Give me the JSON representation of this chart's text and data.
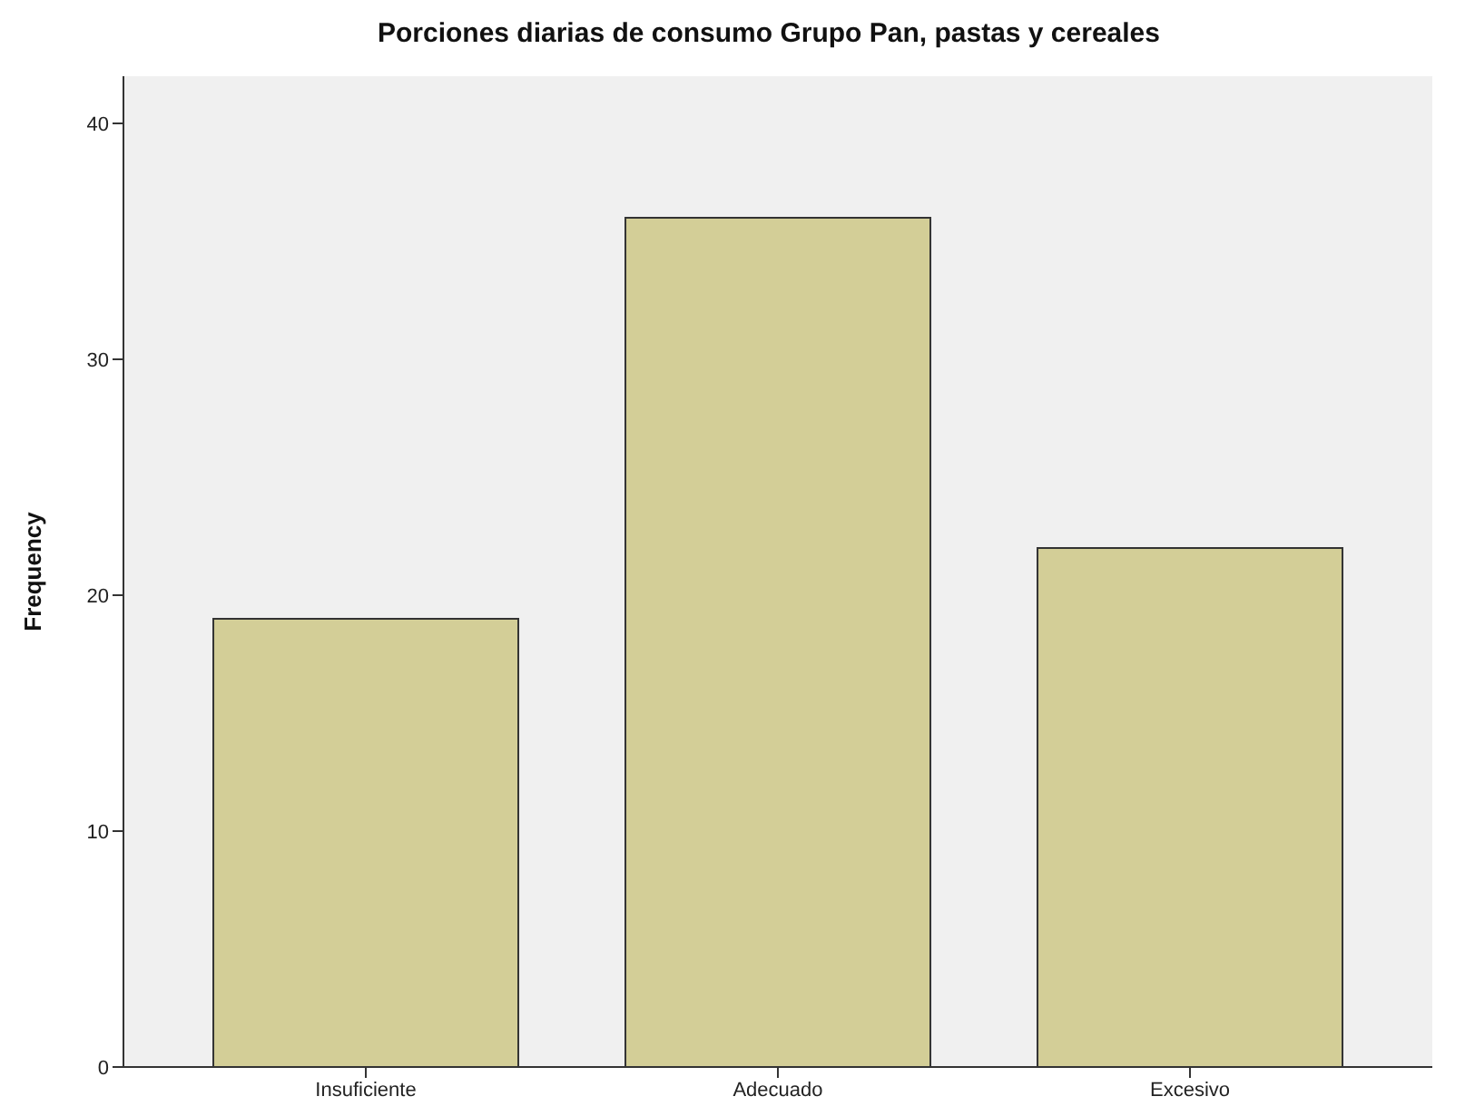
{
  "chart_data": {
    "type": "bar",
    "title": "Porciones diarias de consumo Grupo Pan, pastas y cereales",
    "ylabel": "Frequency",
    "categories": [
      "Insuficiente",
      "Adecuado",
      "Excesivo"
    ],
    "values": [
      19,
      36,
      22
    ],
    "color": "#d3ce97",
    "ylim": [
      0,
      42
    ],
    "yticks": [
      0,
      10,
      20,
      30,
      40
    ],
    "grid": false
  }
}
